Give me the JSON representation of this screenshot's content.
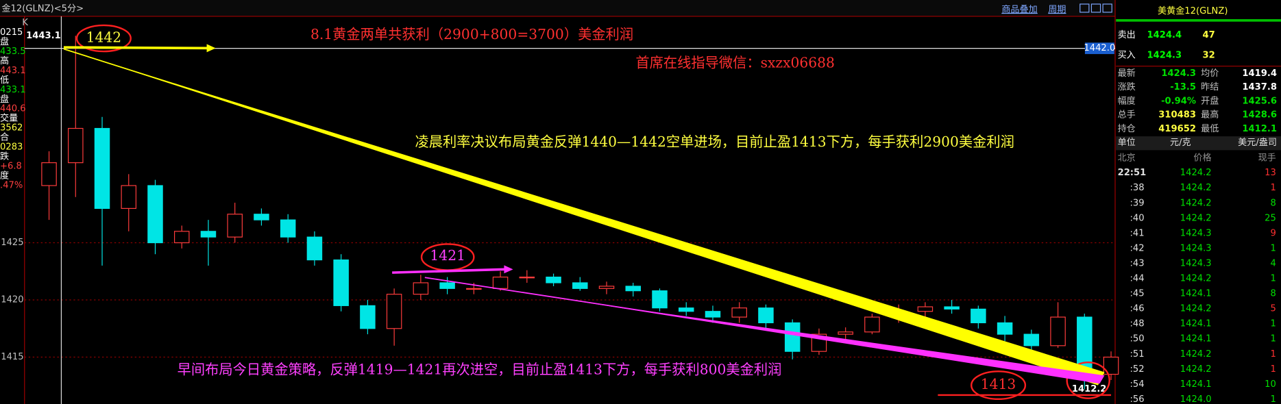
{
  "header": {
    "title": "金12(GLNZ)<5分>",
    "links": [
      "商品叠加",
      "周期"
    ]
  },
  "left_panel": {
    "labels": [
      "0215",
      "盘",
      "433.5",
      "高",
      "443.1",
      "低",
      "433.1",
      "盘",
      "440.6",
      "交量",
      "3562",
      "合",
      "0283",
      "跌",
      "+6.8",
      "度",
      ".47%"
    ],
    "colors": [
      "#ffffff",
      "#ffffff",
      "#00e000",
      "#ffffff",
      "#ff4040",
      "#ffffff",
      "#00e000",
      "#ffffff",
      "#ff4040",
      "#ffffff",
      "#ffff40",
      "#ffffff",
      "#ffff40",
      "#ffffff",
      "#ff4040",
      "#ffffff",
      "#ff4040"
    ],
    "corner": "K"
  },
  "chart_data": {
    "type": "candlestick",
    "open": [
      1430,
      1432,
      1435,
      1428,
      1430,
      1425,
      1426,
      1425.5,
      1427.5,
      1427,
      1425.5,
      1423.5,
      1419.5,
      1417.5,
      1420.5,
      1421.5,
      1421,
      1421,
      1422,
      1422,
      1421.5,
      1421,
      1421.2,
      1420.8,
      1419.3,
      1419,
      1418.5,
      1419.3,
      1418,
      1415.5,
      1417,
      1417.2,
      1418.5,
      1419,
      1419.4,
      1419.2,
      1418,
      1417,
      1416,
      1418.5,
      1413.5
    ],
    "high": [
      1433,
      1443.1,
      1436,
      1431,
      1430.5,
      1426.5,
      1427,
      1428.5,
      1428,
      1427.5,
      1426,
      1424,
      1420,
      1421,
      1422.2,
      1422,
      1421.5,
      1422.5,
      1422.6,
      1422.3,
      1422,
      1421.6,
      1421.5,
      1421,
      1419.8,
      1419.5,
      1419.8,
      1419.6,
      1418.3,
      1417.5,
      1417.6,
      1418.8,
      1419.6,
      1419.8,
      1420,
      1419.5,
      1418.6,
      1417.4,
      1419.8,
      1418.8,
      1415.5
    ],
    "low": [
      1427,
      1429,
      1423,
      1426,
      1424,
      1424.5,
      1423,
      1425,
      1426.5,
      1425,
      1423,
      1419,
      1417,
      1416,
      1420,
      1420.5,
      1420.5,
      1420.8,
      1421.5,
      1421.2,
      1420.8,
      1420.5,
      1420.3,
      1419,
      1418.6,
      1418,
      1418,
      1417.5,
      1414.8,
      1415.2,
      1416.4,
      1417,
      1418,
      1418.5,
      1418.8,
      1417.5,
      1416.4,
      1415.5,
      1415.8,
      1412.2,
      1413
    ],
    "close": [
      1432,
      1435,
      1428,
      1430,
      1425,
      1426,
      1425.5,
      1427.5,
      1427,
      1425.5,
      1423.5,
      1419.5,
      1417.5,
      1420.5,
      1421.5,
      1421,
      1421,
      1422,
      1422,
      1421.5,
      1421,
      1421.2,
      1420.8,
      1419.3,
      1419,
      1418.5,
      1419.3,
      1418,
      1415.5,
      1417,
      1417.2,
      1418.5,
      1419,
      1419.4,
      1419.2,
      1418,
      1417,
      1416,
      1418.5,
      1413.5,
      1415
    ],
    "up_color": "#ff3c3c",
    "down_color": "#00e5e5",
    "ylim": [
      1410.9,
      1444.8
    ],
    "yticks": [
      1415,
      1420,
      1425
    ],
    "grid": true,
    "cursor_price": {
      "value": 1442,
      "label": "1442.0"
    },
    "annotations": [
      "1442",
      "8.1黄金两单共获利（2900+800=3700）美金利润",
      "首席在线指导微信：sxzx06688",
      "凌晨利率决议布局黄金反弹1440—1442空单进场，目前止盈1413下方，每手获利2900美金利润",
      "1421",
      "早间布局今日黄金策略，反弹1419—1421再次进空，目前止盈1413下方，每手获利800美金利润",
      "1413"
    ],
    "annotation_colors": [
      "#ffff40",
      "#ff3030",
      "#ff3030",
      "#ffff40",
      "#ff40ff",
      "#ff40ff",
      "#ff3030"
    ]
  },
  "quote_panel": {
    "title": "美黄金12(GLNZ)",
    "sell": {
      "label": "卖出",
      "price": "1424.4",
      "volume": "47"
    },
    "buy": {
      "label": "买入",
      "price": "1424.3",
      "volume": "32"
    },
    "stats": [
      [
        "最新",
        "1424.3",
        "均价",
        "1419.4"
      ],
      [
        "涨跌",
        "-13.5",
        "昨结",
        "1437.8"
      ],
      [
        "幅度",
        "-0.94%",
        "开盘",
        "1425.6"
      ],
      [
        "总手",
        "310483",
        "最高",
        "1428.6"
      ],
      [
        "持仓",
        "419652",
        "最低",
        "1412.1"
      ]
    ],
    "stat_colors": [
      [
        "#c0c0c0",
        "#00e000",
        "#c0c0c0",
        "#ffffff"
      ],
      [
        "#c0c0c0",
        "#00e000",
        "#c0c0c0",
        "#ffffff"
      ],
      [
        "#c0c0c0",
        "#00e000",
        "#c0c0c0",
        "#00e000"
      ],
      [
        "#c0c0c0",
        "#ffff40",
        "#c0c0c0",
        "#00e000"
      ],
      [
        "#c0c0c0",
        "#ffff40",
        "#c0c0c0",
        "#00e000"
      ]
    ],
    "units": [
      "单位",
      "元/克",
      "美元/盎司"
    ],
    "columns": [
      "北京",
      "价格",
      "现手"
    ],
    "trades": [
      [
        "22:51",
        "1424.2",
        "13"
      ],
      [
        ":38",
        "1424.2",
        "1"
      ],
      [
        ":39",
        "1424.2",
        "8"
      ],
      [
        ":40",
        "1424.2",
        "25"
      ],
      [
        ":41",
        "1424.3",
        "9"
      ],
      [
        ":42",
        "1424.3",
        "1"
      ],
      [
        ":43",
        "1424.3",
        "4"
      ],
      [
        ":44",
        "1424.2",
        "1"
      ],
      [
        ":45",
        "1424.1",
        "8"
      ],
      [
        ":46",
        "1424.2",
        "5"
      ],
      [
        ":48",
        "1424.1",
        "1"
      ],
      [
        ":50",
        "1424.1",
        "1"
      ],
      [
        ":51",
        "1424.2",
        "1"
      ],
      [
        ":52",
        "1424.2",
        "1"
      ],
      [
        ":54",
        "1424.1",
        "10"
      ],
      [
        ":56",
        "1424.0",
        "1"
      ]
    ],
    "volume_colors": [
      "#ff3030",
      "#ff3030",
      "#00e000",
      "#00e000",
      "#ff3030",
      "#00e000",
      "#00e000",
      "#00e000",
      "#00e000",
      "#ff3030",
      "#00e000",
      "#00e000",
      "#ff3030",
      "#ff3030",
      "#00e000",
      "#00e000"
    ]
  }
}
